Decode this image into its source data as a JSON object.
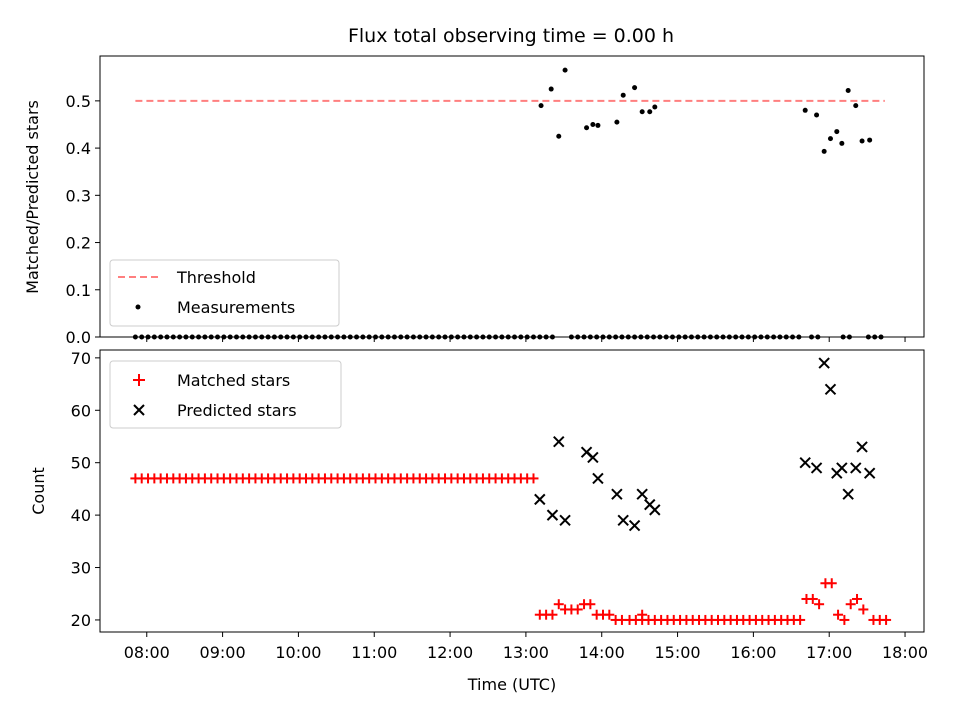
{
  "chart_data": [
    {
      "type": "scatter",
      "title": "Flux total observing time = 0.00 h",
      "ylabel": "Matched/Predicted stars",
      "xlabel": "",
      "xlim": [
        "07:23",
        "18:15"
      ],
      "ylim": [
        0,
        0.595
      ],
      "yticks": [
        "0.0",
        "0.1",
        "0.2",
        "0.3",
        "0.4",
        "0.5"
      ],
      "legend_position": "bottom-left",
      "threshold": {
        "name": "Threshold",
        "value": 0.5,
        "x_start": "07:51",
        "x_end": "17:44",
        "color": "#ff7f7f"
      },
      "measurements": {
        "name": "Measurements",
        "color": "#000000",
        "points": [
          [
            "13:12",
            0.49
          ],
          [
            "13:20",
            0.525
          ],
          [
            "13:26",
            0.425
          ],
          [
            "13:31",
            0.565
          ],
          [
            "13:48",
            0.443
          ],
          [
            "13:53",
            0.45
          ],
          [
            "13:57",
            0.448
          ],
          [
            "14:12",
            0.455
          ],
          [
            "14:17",
            0.512
          ],
          [
            "14:26",
            0.528
          ],
          [
            "14:32",
            0.477
          ],
          [
            "14:38",
            0.477
          ],
          [
            "14:42",
            0.487
          ],
          [
            "16:41",
            0.48
          ],
          [
            "16:50",
            0.47
          ],
          [
            "16:56",
            0.393
          ],
          [
            "17:01",
            0.42
          ],
          [
            "17:06",
            0.435
          ],
          [
            "17:10",
            0.41
          ],
          [
            "17:15",
            0.522
          ],
          [
            "17:21",
            0.49
          ],
          [
            "17:26",
            0.415
          ],
          [
            "17:32",
            0.417
          ]
        ],
        "zero_points": {
          "x_start": "07:51",
          "x_end": "17:45",
          "step_minutes": 5,
          "value": 0,
          "except": [
            "13:12",
            "13:26",
            "13:31",
            "13:48",
            "13:53",
            "13:57",
            "14:12",
            "14:17",
            "14:32",
            "14:38",
            "14:42",
            "16:41",
            "16:50",
            "16:56",
            "17:01",
            "17:06",
            "17:10",
            "17:15",
            "17:21",
            "17:26",
            "17:32"
          ]
        }
      }
    },
    {
      "type": "scatter",
      "title": "",
      "ylabel": "Count",
      "xlabel": "Time (UTC)",
      "xlim": [
        "07:23",
        "18:15"
      ],
      "ylim": [
        17.7,
        71.5
      ],
      "yticks": [
        "20",
        "30",
        "40",
        "50",
        "60",
        "70"
      ],
      "xticks": [
        "08:00",
        "09:00",
        "10:00",
        "11:00",
        "12:00",
        "13:00",
        "14:00",
        "15:00",
        "16:00",
        "17:00",
        "18:00"
      ],
      "legend_position": "top-left",
      "series": [
        {
          "name": "Matched stars",
          "marker": "+",
          "color": "#ff0000",
          "runs": [
            {
              "x_start": "07:51",
              "x_end": "13:06",
              "step_minutes": 5,
              "value": 47
            },
            {
              "x_start": "14:22",
              "x_end": "16:37",
              "step_minutes": 5,
              "value": 20
            },
            {
              "x_start": "17:35",
              "x_end": "17:45",
              "step_minutes": 5,
              "value": 20
            }
          ],
          "points": [
            [
              "13:11",
              21
            ],
            [
              "13:16",
              21
            ],
            [
              "13:21",
              21
            ],
            [
              "13:26",
              23
            ],
            [
              "13:31",
              22
            ],
            [
              "13:36",
              22
            ],
            [
              "13:41",
              22
            ],
            [
              "13:46",
              23
            ],
            [
              "13:51",
              23
            ],
            [
              "13:56",
              21
            ],
            [
              "14:01",
              21
            ],
            [
              "14:06",
              21
            ],
            [
              "14:11",
              20
            ],
            [
              "14:16",
              20
            ],
            [
              "14:32",
              21
            ],
            [
              "16:42",
              24
            ],
            [
              "16:47",
              24
            ],
            [
              "16:52",
              23
            ],
            [
              "16:57",
              27
            ],
            [
              "17:02",
              27
            ],
            [
              "17:07",
              21
            ],
            [
              "17:12",
              20
            ],
            [
              "17:17",
              23
            ],
            [
              "17:22",
              24
            ],
            [
              "17:27",
              22
            ]
          ]
        },
        {
          "name": "Predicted stars",
          "marker": "x",
          "color": "#000000",
          "points": [
            [
              "13:11",
              43
            ],
            [
              "13:21",
              40
            ],
            [
              "13:26",
              54
            ],
            [
              "13:31",
              39
            ],
            [
              "13:48",
              52
            ],
            [
              "13:53",
              51
            ],
            [
              "13:57",
              47
            ],
            [
              "14:12",
              44
            ],
            [
              "14:17",
              39
            ],
            [
              "14:26",
              38
            ],
            [
              "14:32",
              44
            ],
            [
              "14:38",
              42
            ],
            [
              "14:42",
              41
            ],
            [
              "16:41",
              50
            ],
            [
              "16:50",
              49
            ],
            [
              "16:56",
              69
            ],
            [
              "17:01",
              64
            ],
            [
              "17:06",
              48
            ],
            [
              "17:10",
              49
            ],
            [
              "17:15",
              44
            ],
            [
              "17:21",
              49
            ],
            [
              "17:26",
              53
            ],
            [
              "17:32",
              48
            ]
          ]
        }
      ]
    }
  ]
}
